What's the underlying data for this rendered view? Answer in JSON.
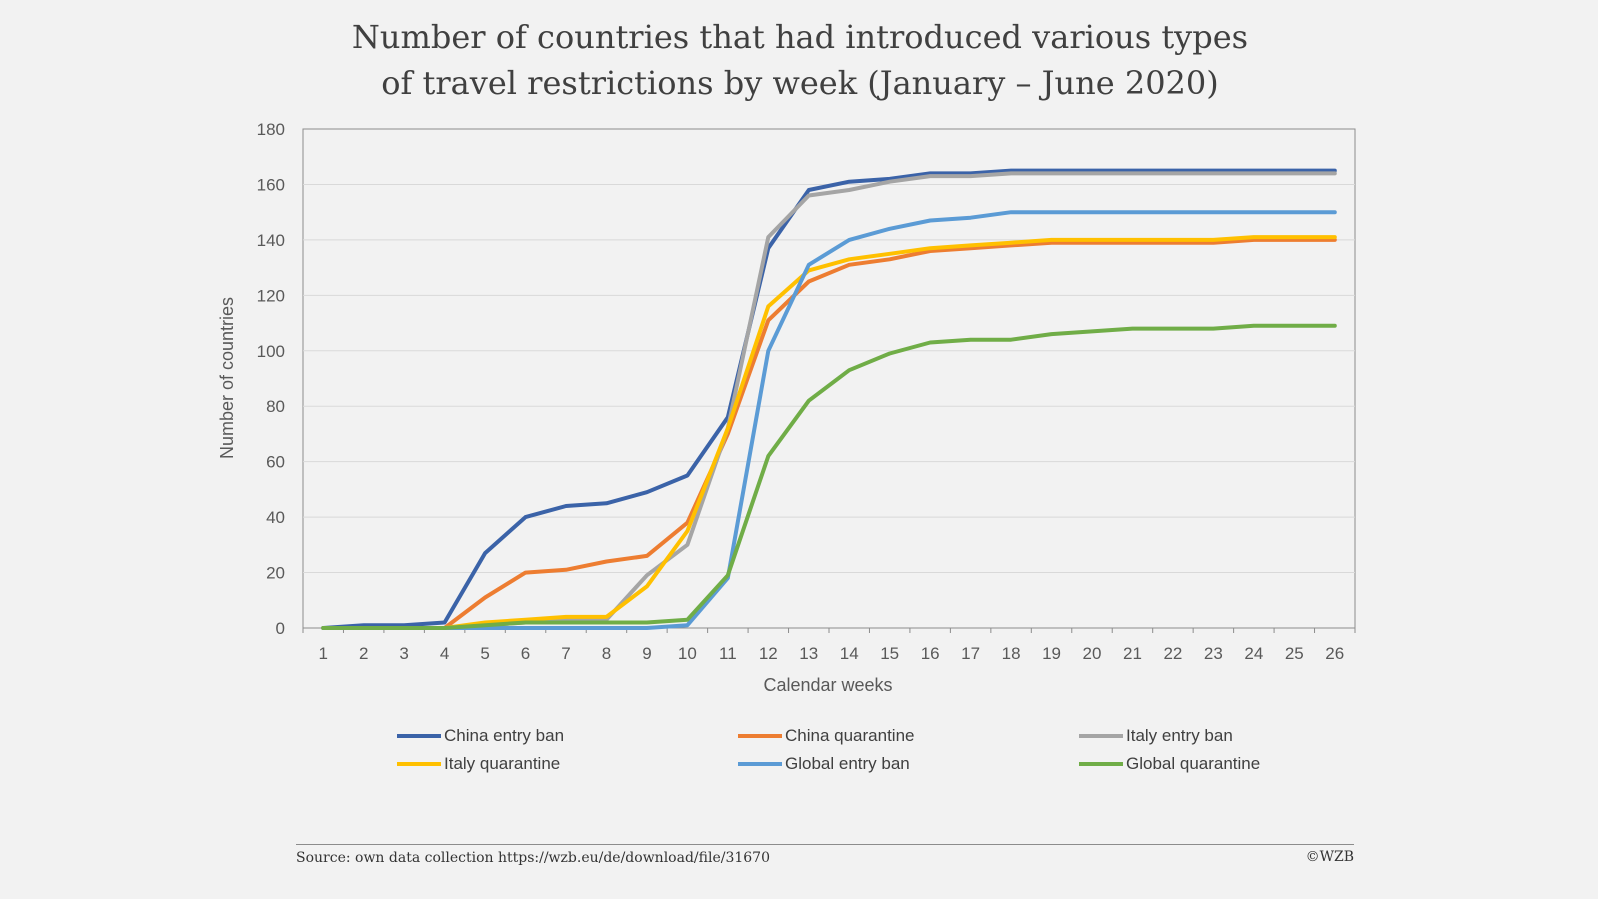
{
  "chart_data": {
    "type": "line",
    "title_lines": [
      "Number of countries that had introduced various types",
      "of travel restrictions by week (January – June 2020)"
    ],
    "xlabel": "Calendar weeks",
    "ylabel": "Number of countries",
    "x": [
      1,
      2,
      3,
      4,
      5,
      6,
      7,
      8,
      9,
      10,
      11,
      12,
      13,
      14,
      15,
      16,
      17,
      18,
      19,
      20,
      21,
      22,
      23,
      24,
      25,
      26
    ],
    "ylim": [
      0,
      180
    ],
    "yticks": [
      0,
      20,
      40,
      60,
      80,
      100,
      120,
      140,
      160,
      180
    ],
    "grid": true,
    "legend_position": "bottom",
    "series": [
      {
        "name": "China entry ban",
        "color": "#3b63a8",
        "values": [
          0,
          1,
          1,
          2,
          27,
          40,
          44,
          45,
          49,
          55,
          76,
          137,
          158,
          161,
          162,
          164,
          164,
          165,
          165,
          165,
          165,
          165,
          165,
          165,
          165,
          165
        ]
      },
      {
        "name": "China quarantine",
        "color": "#ed7d31",
        "values": [
          0,
          0,
          0,
          0,
          11,
          20,
          21,
          24,
          26,
          38,
          70,
          111,
          125,
          131,
          133,
          136,
          137,
          138,
          139,
          139,
          139,
          139,
          139,
          140,
          140,
          140
        ]
      },
      {
        "name": "Italy entry ban",
        "color": "#a5a5a5",
        "values": [
          0,
          0,
          0,
          0,
          1,
          2,
          3,
          3,
          19,
          30,
          72,
          141,
          156,
          158,
          161,
          163,
          163,
          164,
          164,
          164,
          164,
          164,
          164,
          164,
          164,
          164
        ]
      },
      {
        "name": "Italy quarantine",
        "color": "#ffc000",
        "values": [
          0,
          0,
          0,
          0,
          2,
          3,
          4,
          4,
          15,
          35,
          72,
          116,
          129,
          133,
          135,
          137,
          138,
          139,
          140,
          140,
          140,
          140,
          140,
          141,
          141,
          141
        ]
      },
      {
        "name": "Global entry ban",
        "color": "#5b9bd5",
        "values": [
          0,
          0,
          0,
          0,
          0,
          0,
          0,
          0,
          0,
          1,
          18,
          100,
          131,
          140,
          144,
          147,
          148,
          150,
          150,
          150,
          150,
          150,
          150,
          150,
          150,
          150
        ]
      },
      {
        "name": "Global quarantine",
        "color": "#70ad47",
        "values": [
          0,
          0,
          0,
          0,
          1,
          2,
          2,
          2,
          2,
          3,
          19,
          62,
          82,
          93,
          99,
          103,
          104,
          104,
          106,
          107,
          108,
          108,
          108,
          109,
          109,
          109
        ]
      }
    ]
  },
  "footer": {
    "source": "Source: own data collection https://wzb.eu/de/download/file/31670",
    "copyright": "©WZB"
  }
}
